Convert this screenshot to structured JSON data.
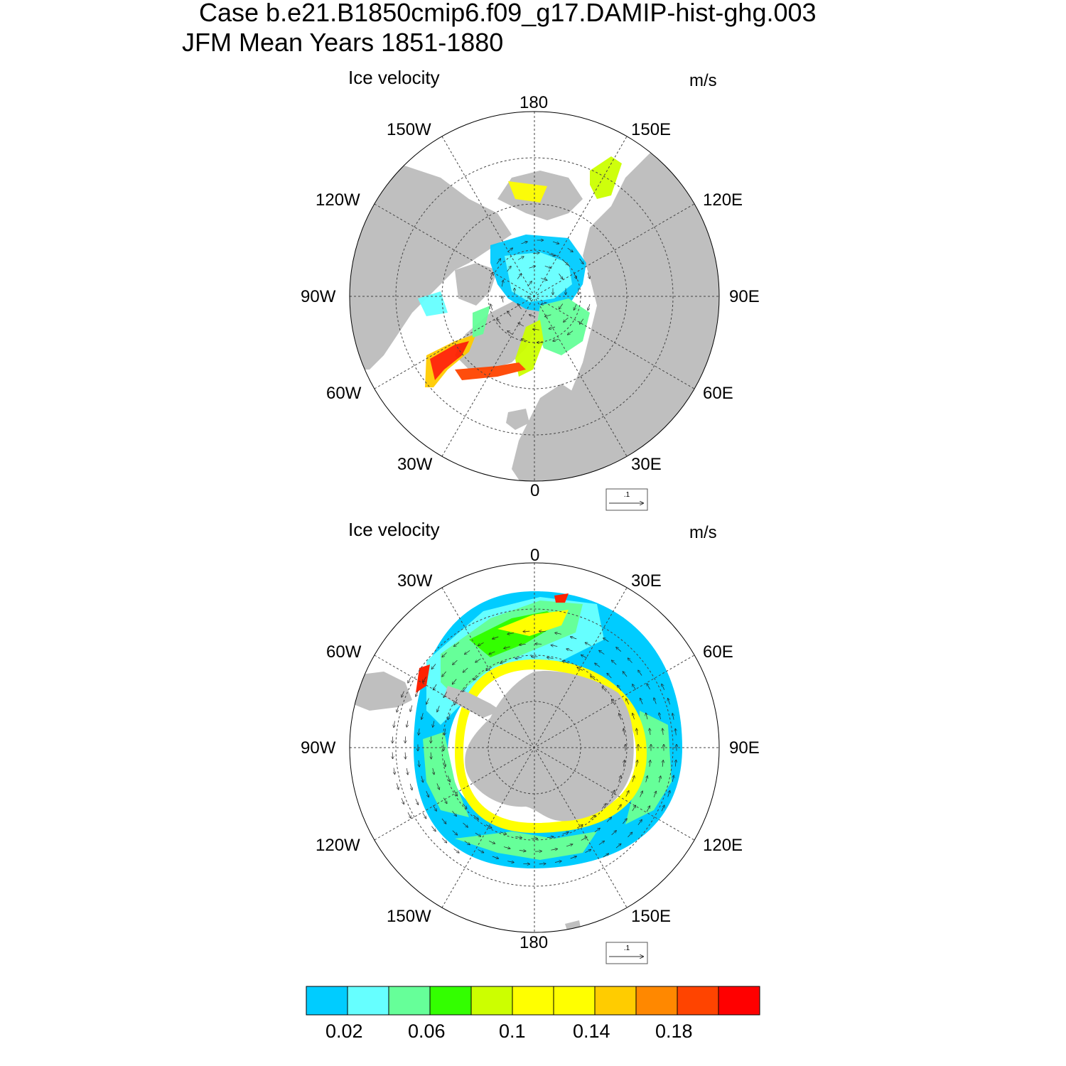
{
  "title": {
    "line1": "Case b.e21.B1850cmip6.f09_g17.DAMIP-hist-ghg.003",
    "line2": "JFM Mean   Years 1851-1880"
  },
  "panels": [
    {
      "id": "north",
      "title": "Ice velocity",
      "units": "m/s",
      "hemisphere": "north",
      "longitude_labels": {
        "top": "180",
        "bottom": "0",
        "left": "90W",
        "right": "90E",
        "upper_left_1": "150W",
        "upper_left_2": "120W",
        "upper_right_1": "150E",
        "upper_right_2": "120E",
        "lower_left_1": "60W",
        "lower_left_2": "30W",
        "lower_right_1": "60E",
        "lower_right_2": "30E"
      },
      "reference_vector_label": ".1"
    },
    {
      "id": "south",
      "title": "Ice velocity",
      "units": "m/s",
      "hemisphere": "south",
      "longitude_labels": {
        "top": "0",
        "bottom": "180",
        "left": "90W",
        "right": "90E",
        "upper_left_1": "30W",
        "upper_left_2": "60W",
        "upper_right_1": "30E",
        "upper_right_2": "60E",
        "lower_left_1": "120W",
        "lower_left_2": "150W",
        "lower_right_1": "120E",
        "lower_right_2": "150E"
      },
      "reference_vector_label": ".1"
    }
  ],
  "colorbar": {
    "colors": [
      "#00ccff",
      "#66ffff",
      "#66ff99",
      "#33ff00",
      "#ccff00",
      "#ffff00",
      "#ffff00",
      "#ffcc00",
      "#ff8800",
      "#ff4400",
      "#ff0000"
    ],
    "tick_labels": [
      "0.02",
      "0.06",
      "0.1",
      "0.14",
      "0.18"
    ]
  },
  "colors": {
    "land": "#bfbfbf",
    "ocean": "#ffffff",
    "grid": "#444444"
  }
}
